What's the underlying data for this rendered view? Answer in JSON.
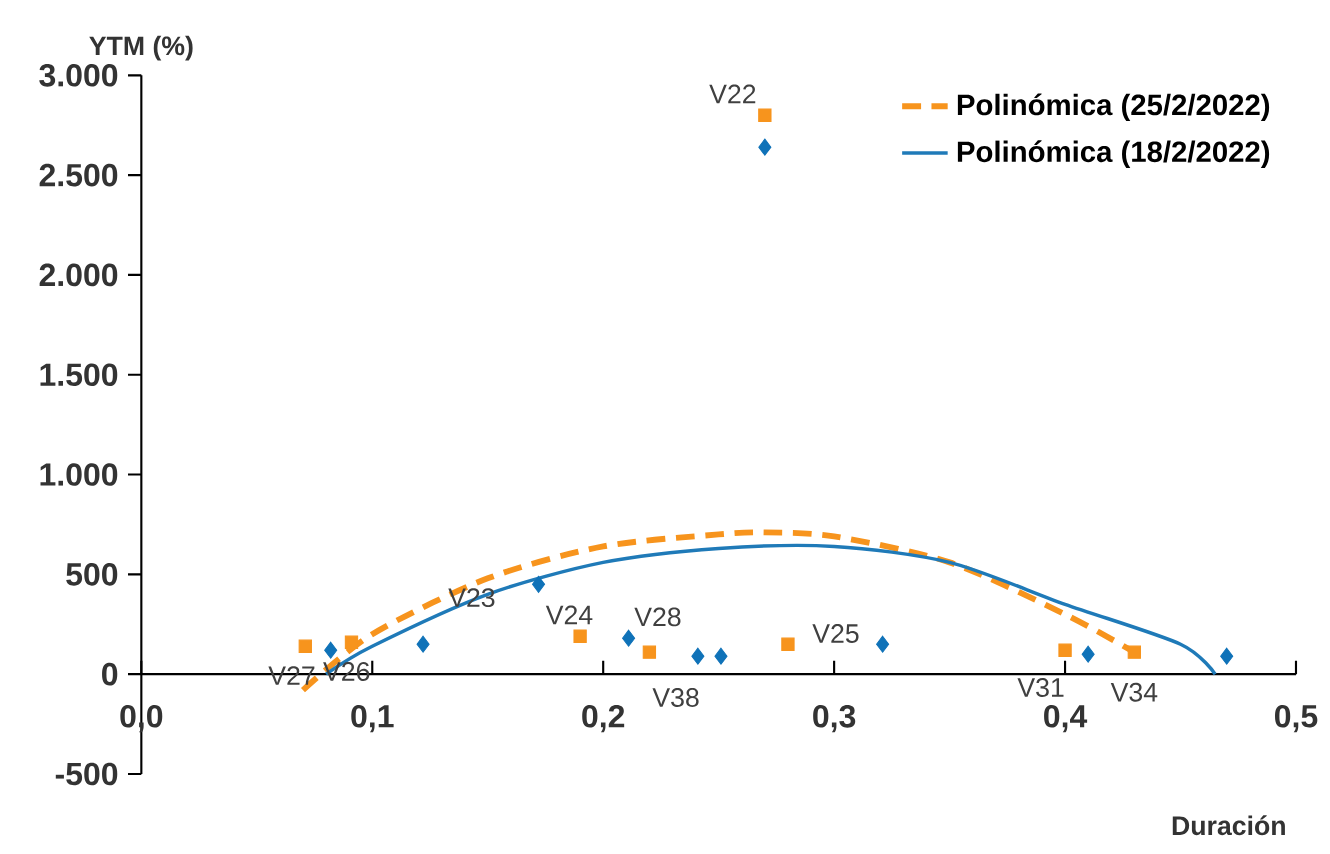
{
  "chart_data": {
    "type": "scatter",
    "xlabel": "Duración",
    "ylabel": "YTM (%)",
    "xlim": [
      0,
      0.5
    ],
    "ylim": [
      -500,
      3000
    ],
    "xticks": [
      {
        "value": 0,
        "label": "0,0"
      },
      {
        "value": 0.1,
        "label": "0,1"
      },
      {
        "value": 0.2,
        "label": "0,2"
      },
      {
        "value": 0.3,
        "label": "0,3"
      },
      {
        "value": 0.4,
        "label": "0,4"
      },
      {
        "value": 0.5,
        "label": "0,5"
      }
    ],
    "yticks": [
      {
        "value": -500,
        "label": "-500"
      },
      {
        "value": 0,
        "label": "0"
      },
      {
        "value": 500,
        "label": "500"
      },
      {
        "value": 1000,
        "label": "1.000"
      },
      {
        "value": 1500,
        "label": "1.500"
      },
      {
        "value": 2000,
        "label": "2.000"
      },
      {
        "value": 2500,
        "label": "2.500"
      },
      {
        "value": 3000,
        "label": "3.000"
      }
    ],
    "grid": false,
    "legend": "top right",
    "series": [
      {
        "marker": "square",
        "color": "#f7941d",
        "x": [
          0.071,
          0.091,
          0.19,
          0.22,
          0.27,
          0.28,
          0.4,
          0.43
        ],
        "values": [
          140,
          160,
          190,
          110,
          2800,
          150,
          120,
          110
        ]
      },
      {
        "marker": "diamond",
        "color": "#0f72b8",
        "x": [
          0.082,
          0.122,
          0.172,
          0.211,
          0.241,
          0.251,
          0.27,
          0.321,
          0.41,
          0.47
        ],
        "values": [
          120,
          150,
          450,
          180,
          90,
          90,
          2640,
          150,
          100,
          90
        ]
      },
      {
        "type": "line",
        "name": "Polinómica (25/2/2022)",
        "line_style": "dashed",
        "color": "#f7941d",
        "x": [
          0.07,
          0.1,
          0.15,
          0.2,
          0.25,
          0.27,
          0.3,
          0.35,
          0.4,
          0.43
        ],
        "values": [
          -80,
          200,
          480,
          640,
          700,
          710,
          690,
          560,
          300,
          110
        ]
      },
      {
        "type": "line",
        "name": "Polinómica (18/2/2022)",
        "line_style": "solid",
        "color": "#1f7ab8",
        "x": [
          0.08,
          0.1,
          0.15,
          0.2,
          0.25,
          0.3,
          0.35,
          0.4,
          0.45,
          0.465
        ],
        "values": [
          0,
          140,
          400,
          560,
          630,
          640,
          560,
          350,
          150,
          0
        ]
      }
    ],
    "annotations": [
      {
        "text": "V22",
        "x": 0.27,
        "y": 2800
      },
      {
        "text": "V27",
        "x": 0.071,
        "y": 140
      },
      {
        "text": "V26",
        "x": 0.082,
        "y": 120
      },
      {
        "text": "V23",
        "x": 0.172,
        "y": 450
      },
      {
        "text": "V24",
        "x": 0.19,
        "y": 190
      },
      {
        "text": "V28",
        "x": 0.211,
        "y": 180
      },
      {
        "text": "V38",
        "x": 0.22,
        "y": 110
      },
      {
        "text": "V25",
        "x": 0.28,
        "y": 150
      },
      {
        "text": "V31",
        "x": 0.4,
        "y": 120
      },
      {
        "text": "V34",
        "x": 0.43,
        "y": 110
      }
    ]
  }
}
